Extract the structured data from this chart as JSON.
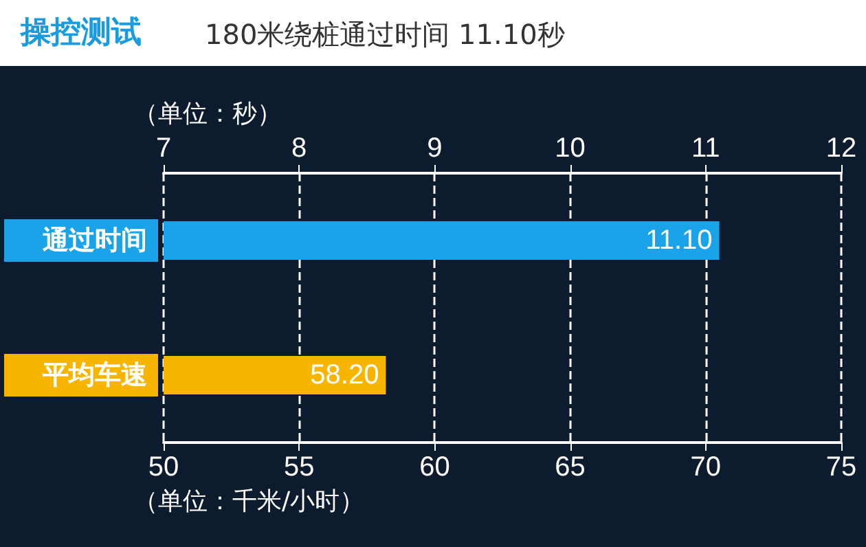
{
  "chart_data": {
    "type": "bar",
    "orientation": "horizontal",
    "title": "操控测试",
    "subtitle": "180米绕桩通过时间 11.10秒",
    "categories": [
      "通过时间",
      "平均车速"
    ],
    "series": [
      {
        "color": "#1aa3e8",
        "axis": "x2",
        "values": [
          11.1,
          null
        ],
        "value_labels": [
          "11.10",
          null
        ]
      },
      {
        "color": "#f7b500",
        "values": [
          null,
          58.2
        ],
        "value_labels": [
          null,
          "58.20"
        ]
      }
    ],
    "xlabel": "（单位：千米/小时）",
    "x2label": "（单位：秒）",
    "xlim": [
      50,
      75
    ],
    "xticks": [
      50,
      55,
      60,
      65,
      70,
      75
    ],
    "x2lim": [
      7,
      12
    ],
    "x2ticks": [
      7,
      8,
      9,
      10,
      11,
      12
    ],
    "grid": "x"
  }
}
